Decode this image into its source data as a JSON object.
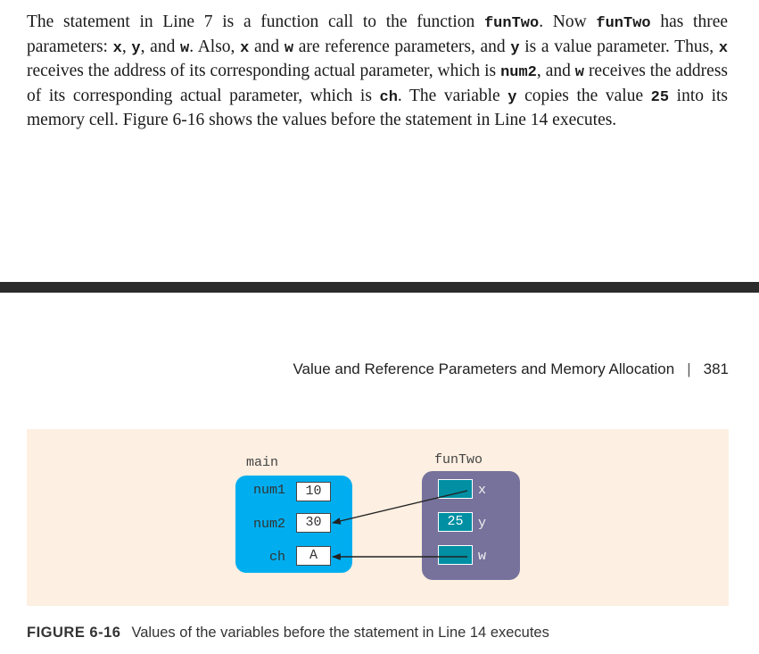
{
  "paragraph": {
    "t1": "The statement in Line 7 is a function call to the function ",
    "c1": "funTwo",
    "t2": ". Now ",
    "c2": "funTwo",
    "t3": " has three parameters: ",
    "c3": "x",
    "t4": ", ",
    "c4": "y",
    "t5": ", and ",
    "c5": "w",
    "t6": ". Also, ",
    "c6": "x",
    "t7": " and ",
    "c7": "w",
    "t8": " are reference parameters, and ",
    "c8": "y",
    "t9": " is a value parameter. Thus, ",
    "c9": "x",
    "t10": " receives the address of its corresponding actual parameter, which is ",
    "c10": "num2",
    "t11": ", and ",
    "c11": "w",
    "t12": " receives the address of its corresponding actual parameter, which is ",
    "c12": "ch",
    "t13": ". The variable ",
    "c13": "y",
    "t14": " copies the value ",
    "c14": "25",
    "t15": " into its memory cell. Figure 6-16 shows the values before the statement in Line 14 executes."
  },
  "running_head": {
    "title": "Value and Reference Parameters and Memory Allocation",
    "separator": "|",
    "page_number": "381"
  },
  "figure": {
    "main": {
      "label": "main",
      "vars": [
        {
          "name": "num1",
          "value": "10"
        },
        {
          "name": "num2",
          "value": "30"
        },
        {
          "name": "ch",
          "value": "A"
        }
      ]
    },
    "funTwo": {
      "label": "funTwo",
      "params": [
        {
          "name": "x",
          "value": ""
        },
        {
          "name": "y",
          "value": "25"
        },
        {
          "name": "w",
          "value": ""
        }
      ]
    },
    "colors": {
      "main_frame": "#00aeef",
      "fun_frame": "#77729c",
      "cell_teal": "#008fa3",
      "panel_bg": "#fdefe1"
    }
  },
  "caption": {
    "number": "FIGURE 6-16",
    "text": "Values of the variables before the statement in Line 14 executes"
  }
}
